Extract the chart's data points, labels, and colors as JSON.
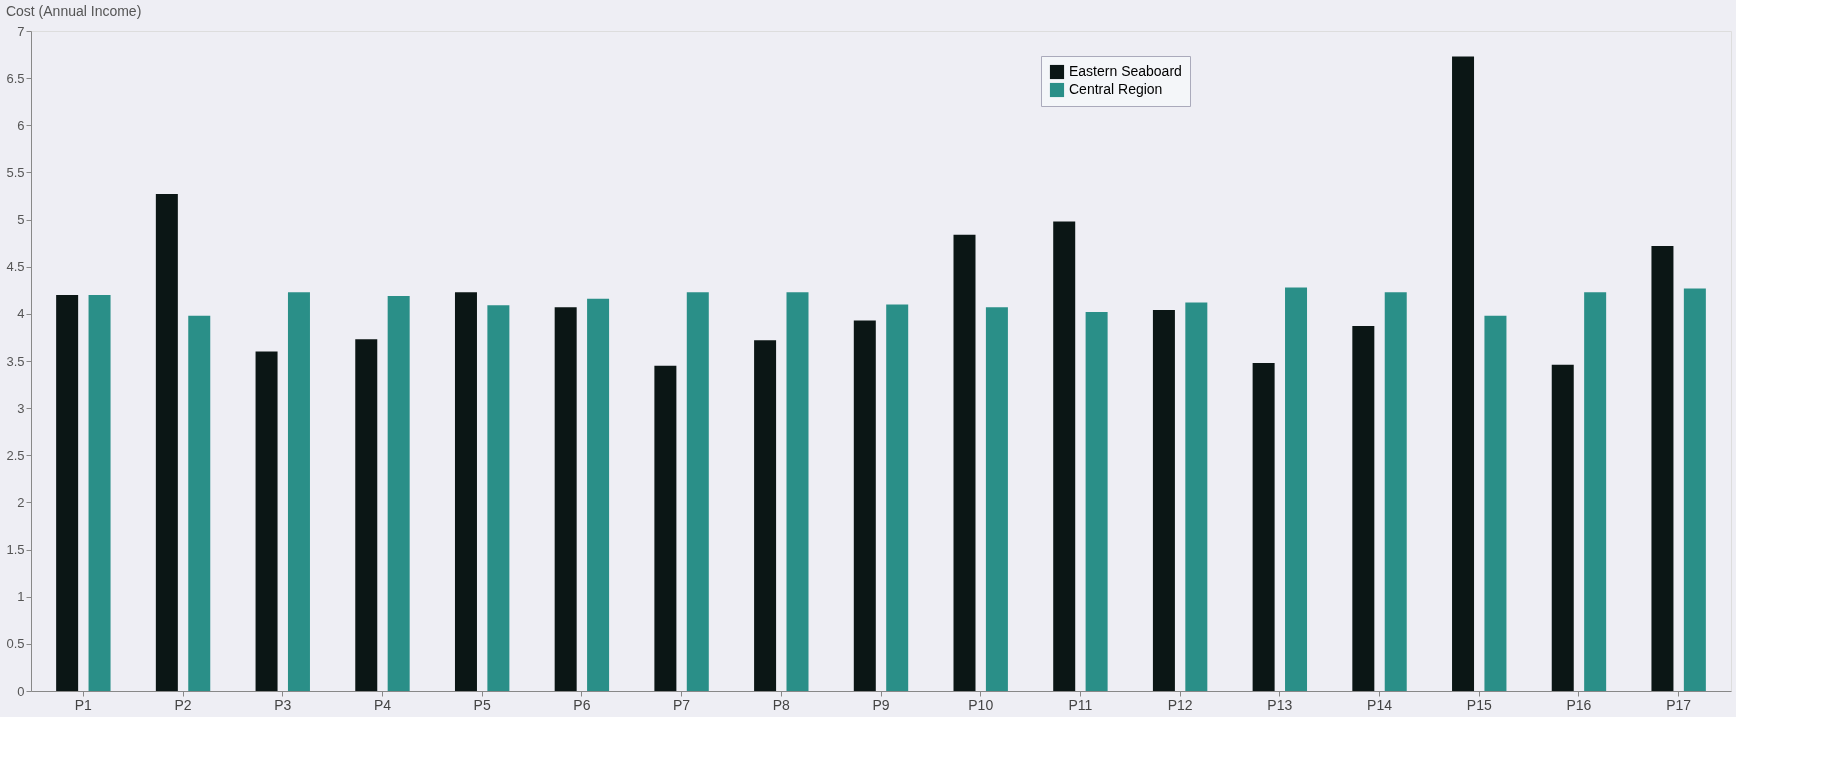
{
  "chart_data": {
    "type": "bar",
    "ylabel": "Cost (Annual Income)",
    "categories": [
      "P1",
      "P2",
      "P3",
      "P4",
      "P5",
      "P6",
      "P7",
      "P8",
      "P9",
      "P10",
      "P11",
      "P12",
      "P13",
      "P14",
      "P15",
      "P16",
      "P17"
    ],
    "series": [
      {
        "name": "Eastern Seaboard",
        "color": "#0b1615",
        "values": [
          4.2,
          5.27,
          3.6,
          3.73,
          4.23,
          4.07,
          3.45,
          3.72,
          3.93,
          4.84,
          4.98,
          4.04,
          3.48,
          3.87,
          6.73,
          3.46,
          4.72
        ]
      },
      {
        "name": "Central Region",
        "color": "#2a8f88",
        "values": [
          4.2,
          3.98,
          4.23,
          4.19,
          4.09,
          4.16,
          4.23,
          4.23,
          4.1,
          4.07,
          4.02,
          4.12,
          4.28,
          4.23,
          3.98,
          4.23,
          4.27
        ]
      }
    ],
    "ylim": [
      0,
      7
    ],
    "yticks": [
      0,
      0.5,
      1,
      1.5,
      2,
      2.5,
      3,
      3.5,
      4,
      4.5,
      5,
      5.5,
      6,
      6.5,
      7
    ],
    "grid": false,
    "legend": "top"
  }
}
